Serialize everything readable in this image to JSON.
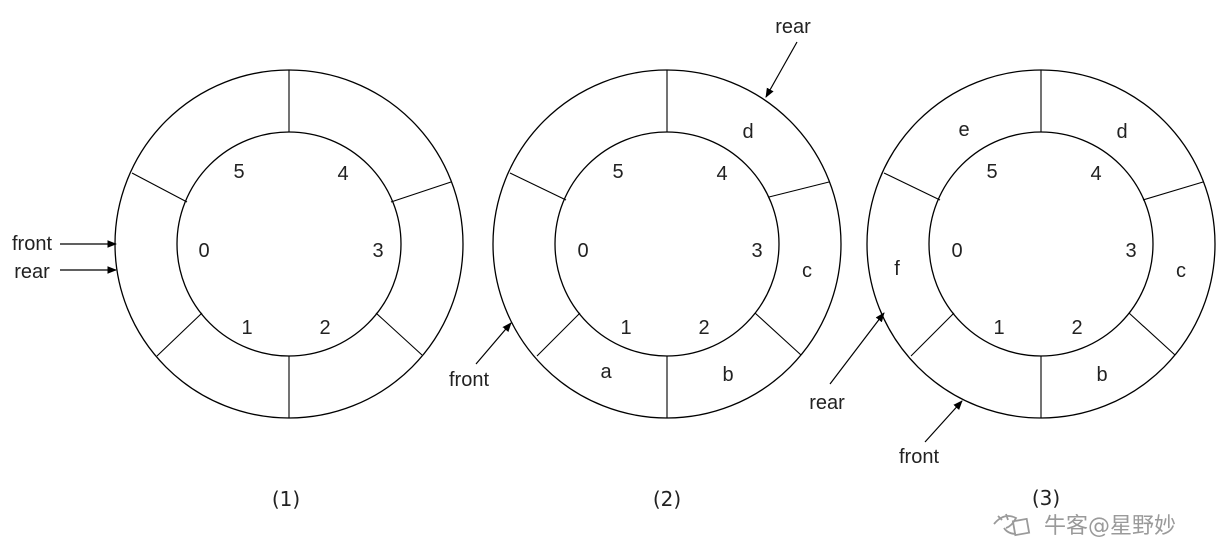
{
  "diagrams": [
    {
      "caption": "(1)",
      "indices": [
        "0",
        "1",
        "2",
        "3",
        "4",
        "5"
      ],
      "cells": [
        "",
        "",
        "",
        "",
        "",
        ""
      ],
      "pointers": [
        {
          "label": "front"
        },
        {
          "label": "rear"
        }
      ]
    },
    {
      "caption": "(2)",
      "indices": [
        "0",
        "1",
        "2",
        "3",
        "4",
        "5"
      ],
      "cells": [
        "",
        "a",
        "b",
        "c",
        "d",
        ""
      ],
      "pointers": [
        {
          "label": "rear"
        },
        {
          "label": "front"
        }
      ]
    },
    {
      "caption": "(3)",
      "indices": [
        "0",
        "1",
        "2",
        "3",
        "4",
        "5"
      ],
      "cells": [
        "f",
        "",
        "b",
        "c",
        "d",
        "e"
      ],
      "pointers": [
        {
          "label": "rear"
        },
        {
          "label": "front"
        }
      ]
    }
  ],
  "watermark": {
    "icon": "niuke-logo-icon",
    "text": "牛客@星野妙"
  }
}
